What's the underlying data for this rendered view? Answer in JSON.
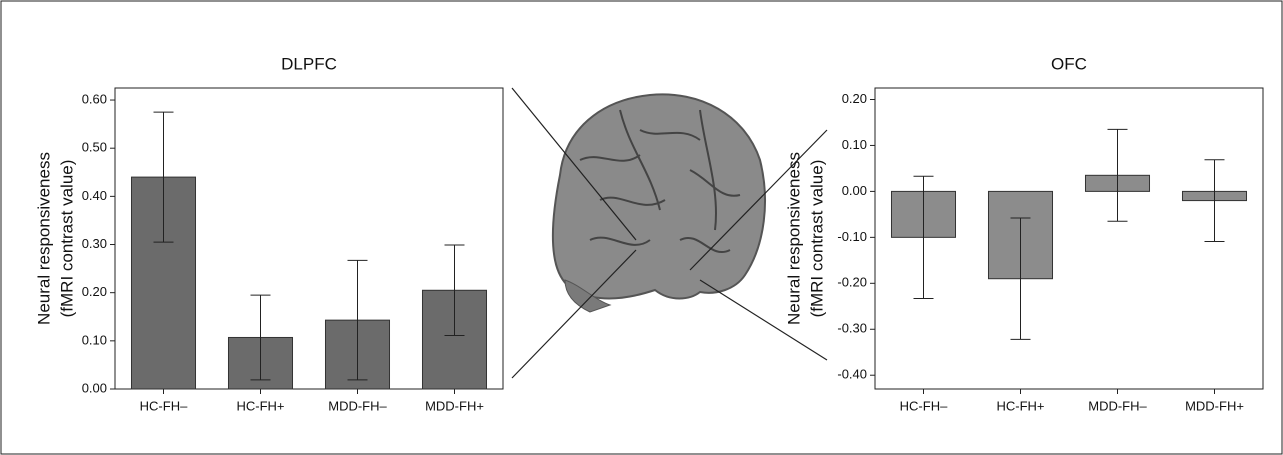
{
  "chart_data": [
    {
      "type": "bar",
      "title": "DLPFC",
      "y_label": [
        "Neural responsiveness",
        "(fMRI contrast value)"
      ],
      "categories": [
        "HC-FH–",
        "HC-FH+",
        "MDD-FH–",
        "MDD-FH+"
      ],
      "values": [
        0.44,
        0.107,
        0.143,
        0.205
      ],
      "errors": [
        0.135,
        0.088,
        0.124,
        0.094
      ],
      "color": "#6b6b6b",
      "ylim": [
        0,
        0.625
      ],
      "yticks": [
        {
          "value": 0,
          "label": "0.00"
        },
        {
          "value": 0.1,
          "label": "0.10"
        },
        {
          "value": 0.2,
          "label": "0.20"
        },
        {
          "value": 0.3,
          "label": "0.30"
        },
        {
          "value": 0.4,
          "label": "0.40"
        },
        {
          "value": 0.5,
          "label": "0.50"
        },
        {
          "value": 0.6,
          "label": "0.60"
        }
      ]
    },
    {
      "type": "bar",
      "title": "OFC",
      "y_label": [
        "Neural responsiveness",
        "(fMRI contrast value)"
      ],
      "categories": [
        "HC-FH–",
        "HC-FH+",
        "MDD-FH–",
        "MDD-FH+"
      ],
      "values": [
        -0.1,
        -0.19,
        0.035,
        -0.02
      ],
      "errors": [
        0.133,
        0.132,
        0.1,
        0.089
      ],
      "color": "#8c8c8c",
      "ylim": [
        -0.43,
        0.225
      ],
      "yticks": [
        {
          "value": -0.4,
          "label": "-0.40"
        },
        {
          "value": -0.3,
          "label": "-0.30"
        },
        {
          "value": -0.2,
          "label": "-0.20"
        },
        {
          "value": -0.1,
          "label": "-0.10"
        },
        {
          "value": 0,
          "label": "0.00"
        },
        {
          "value": 0.1,
          "label": "0.10"
        },
        {
          "value": 0.2,
          "label": "0.20"
        }
      ]
    }
  ]
}
